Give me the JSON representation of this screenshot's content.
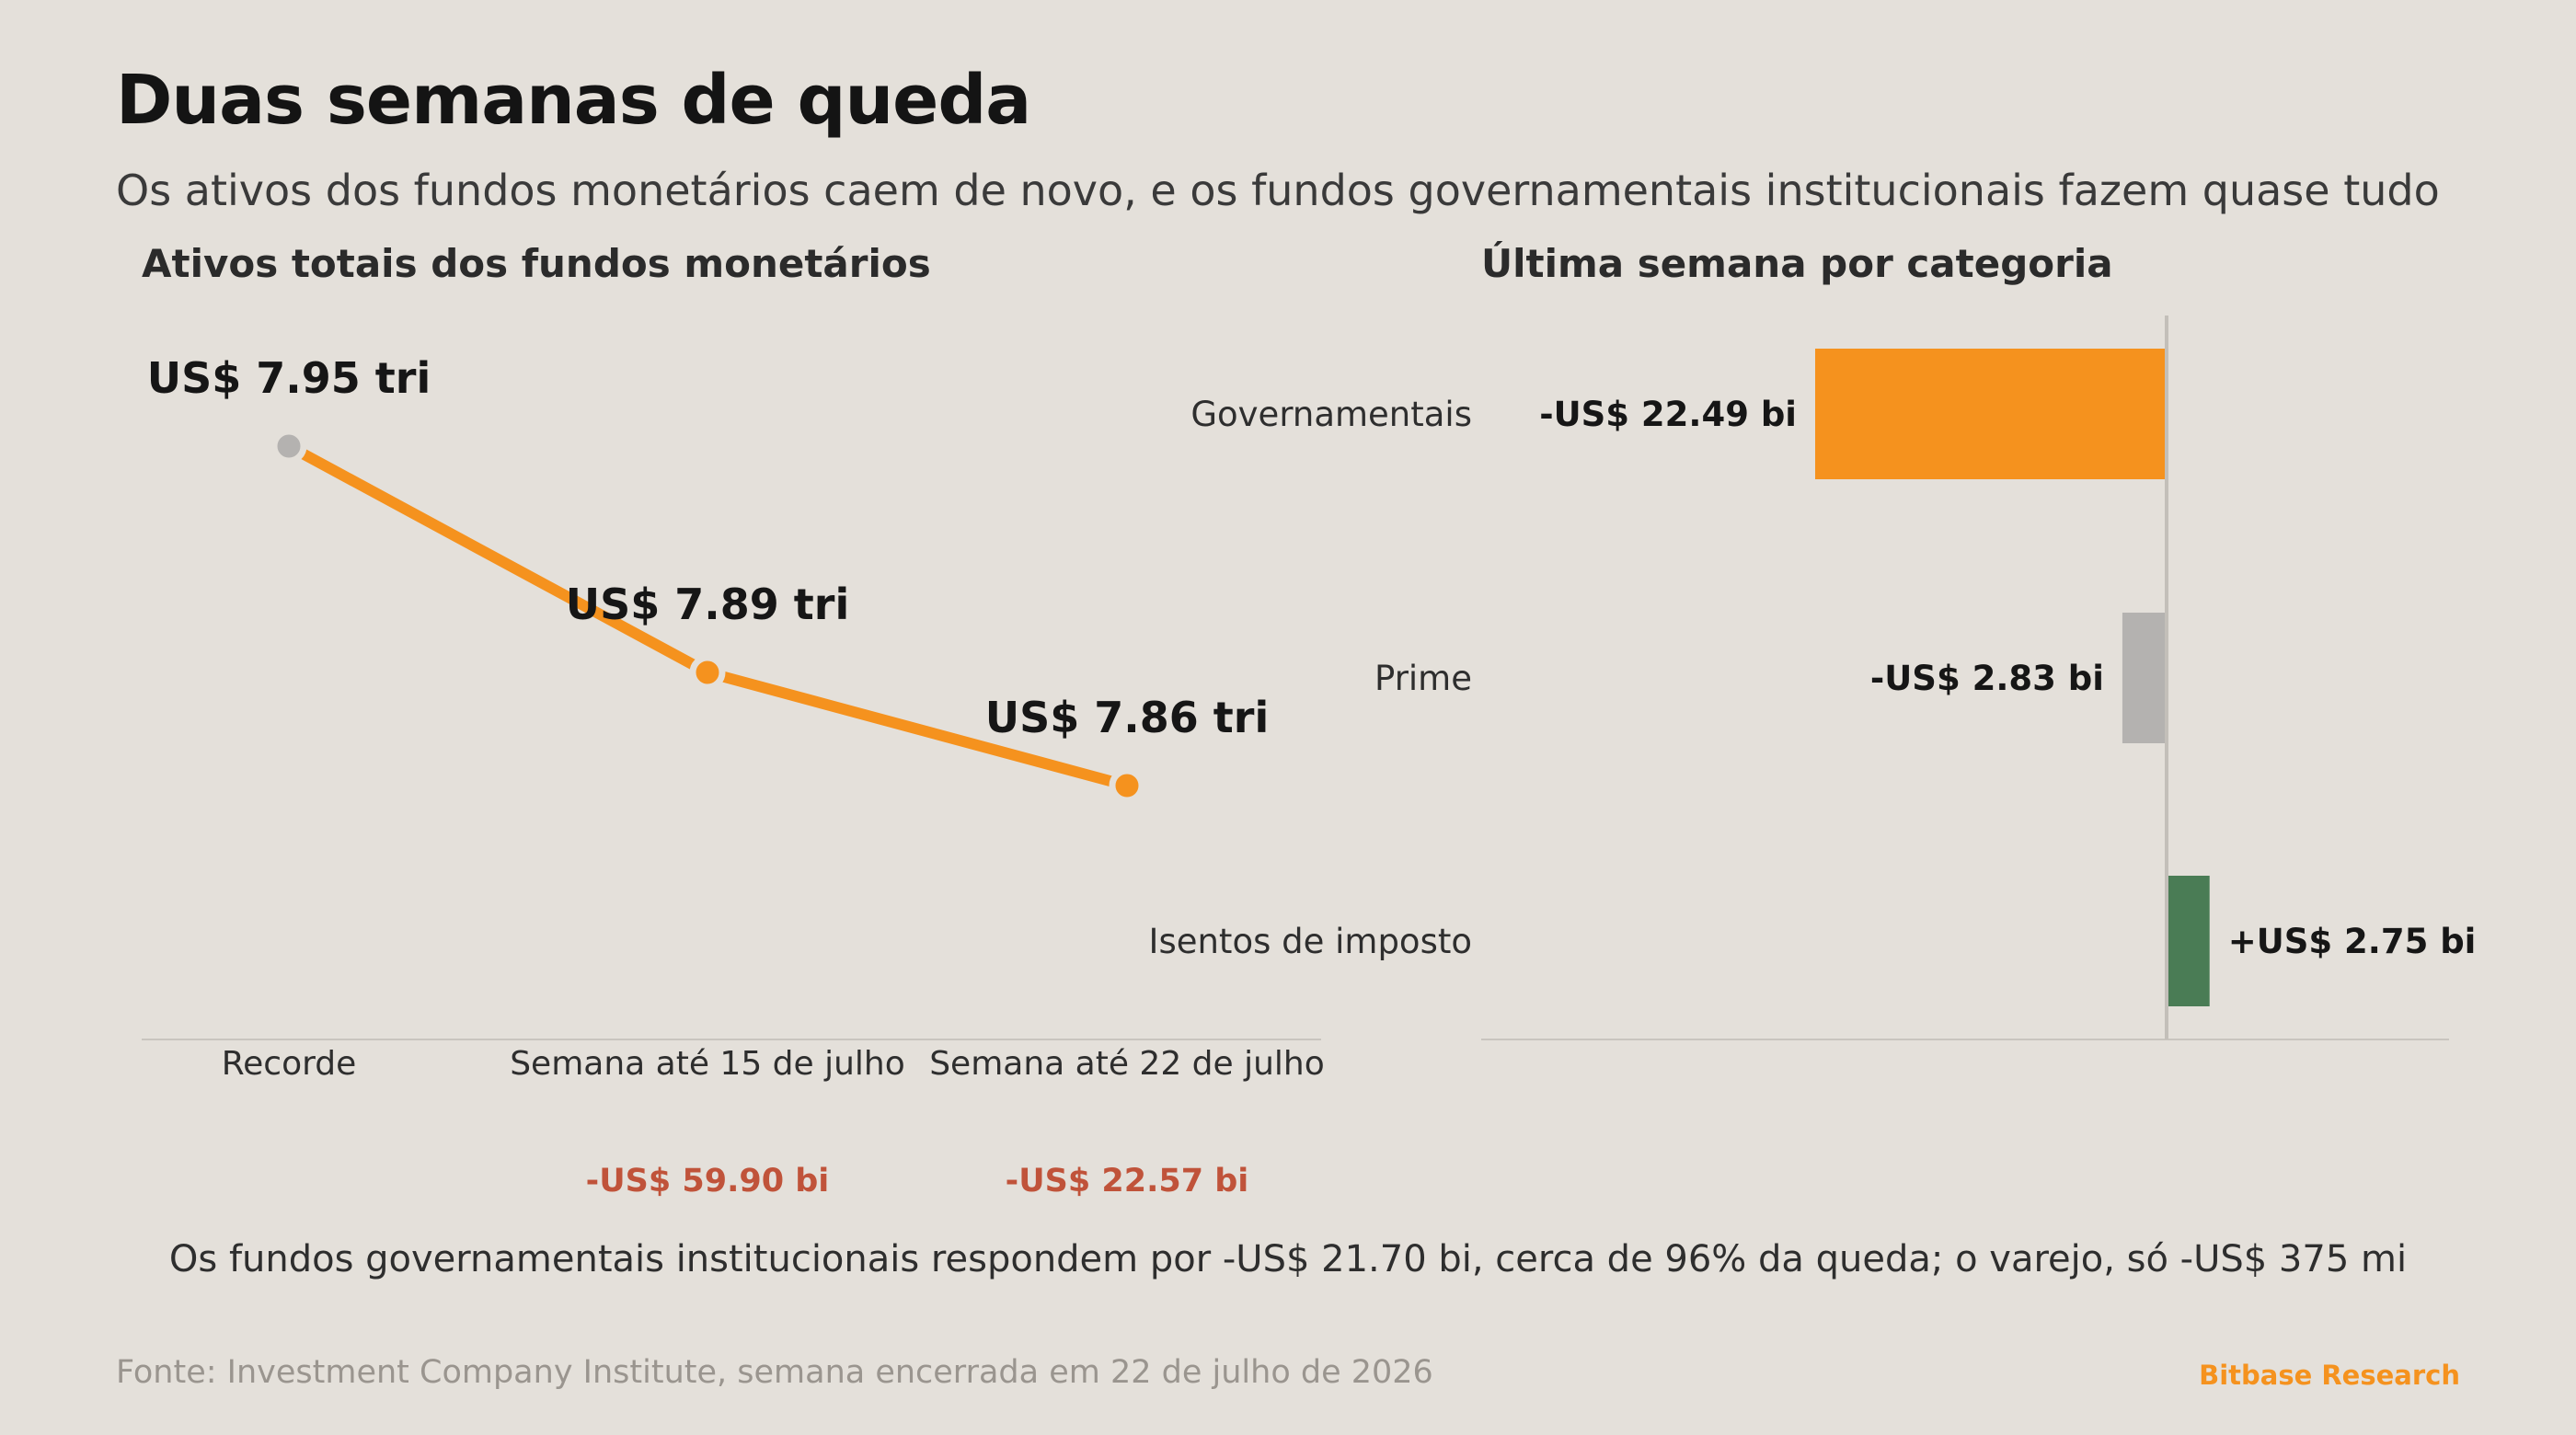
{
  "title": "Duas semanas de queda",
  "subtitle": "Os ativos dos fundos monetários caem de novo, e os fundos governamentais institucionais fazem quase tudo",
  "footnote": "Os fundos governamentais institucionais respondem por -US$ 21.70 bi, cerca de 96% da queda; o varejo, só -US$ 375 mi",
  "source": "Fonte: Investment Company Institute, semana encerrada em 22 de julho de 2026",
  "brand": "Bitbase Research",
  "colors": {
    "accent": "#f5921e",
    "gray": "#b4b2b0",
    "green": "#4a7c55",
    "negative_text": "#c0533a"
  },
  "chart_data": [
    {
      "type": "line",
      "title": "Ativos totais dos fundos monetários",
      "categories": [
        "Recorde",
        "Semana até 15 de julho",
        "Semana até 22 de julho"
      ],
      "values": [
        7.95,
        7.89,
        7.86
      ],
      "value_labels": [
        "US$ 7.95 tri",
        "US$ 7.89 tri",
        "US$ 7.86 tri"
      ],
      "change_labels": [
        "",
        "-US$ 59.90 bi",
        "-US$ 22.57 bi"
      ],
      "ylim": [
        7.8,
        8.0
      ],
      "grid": false,
      "legend": "none"
    },
    {
      "type": "bar",
      "orientation": "horizontal",
      "title": "Última semana por categoria",
      "categories": [
        "Governamentais",
        "Prime",
        "Isentos de imposto"
      ],
      "values": [
        -22.49,
        -2.83,
        2.75
      ],
      "value_labels": [
        "-US$ 22.49 bi",
        "-US$ 2.83 bi",
        "+US$ 2.75 bi"
      ],
      "xlim": [
        -40,
        16
      ],
      "grid": false,
      "legend": "none"
    }
  ]
}
